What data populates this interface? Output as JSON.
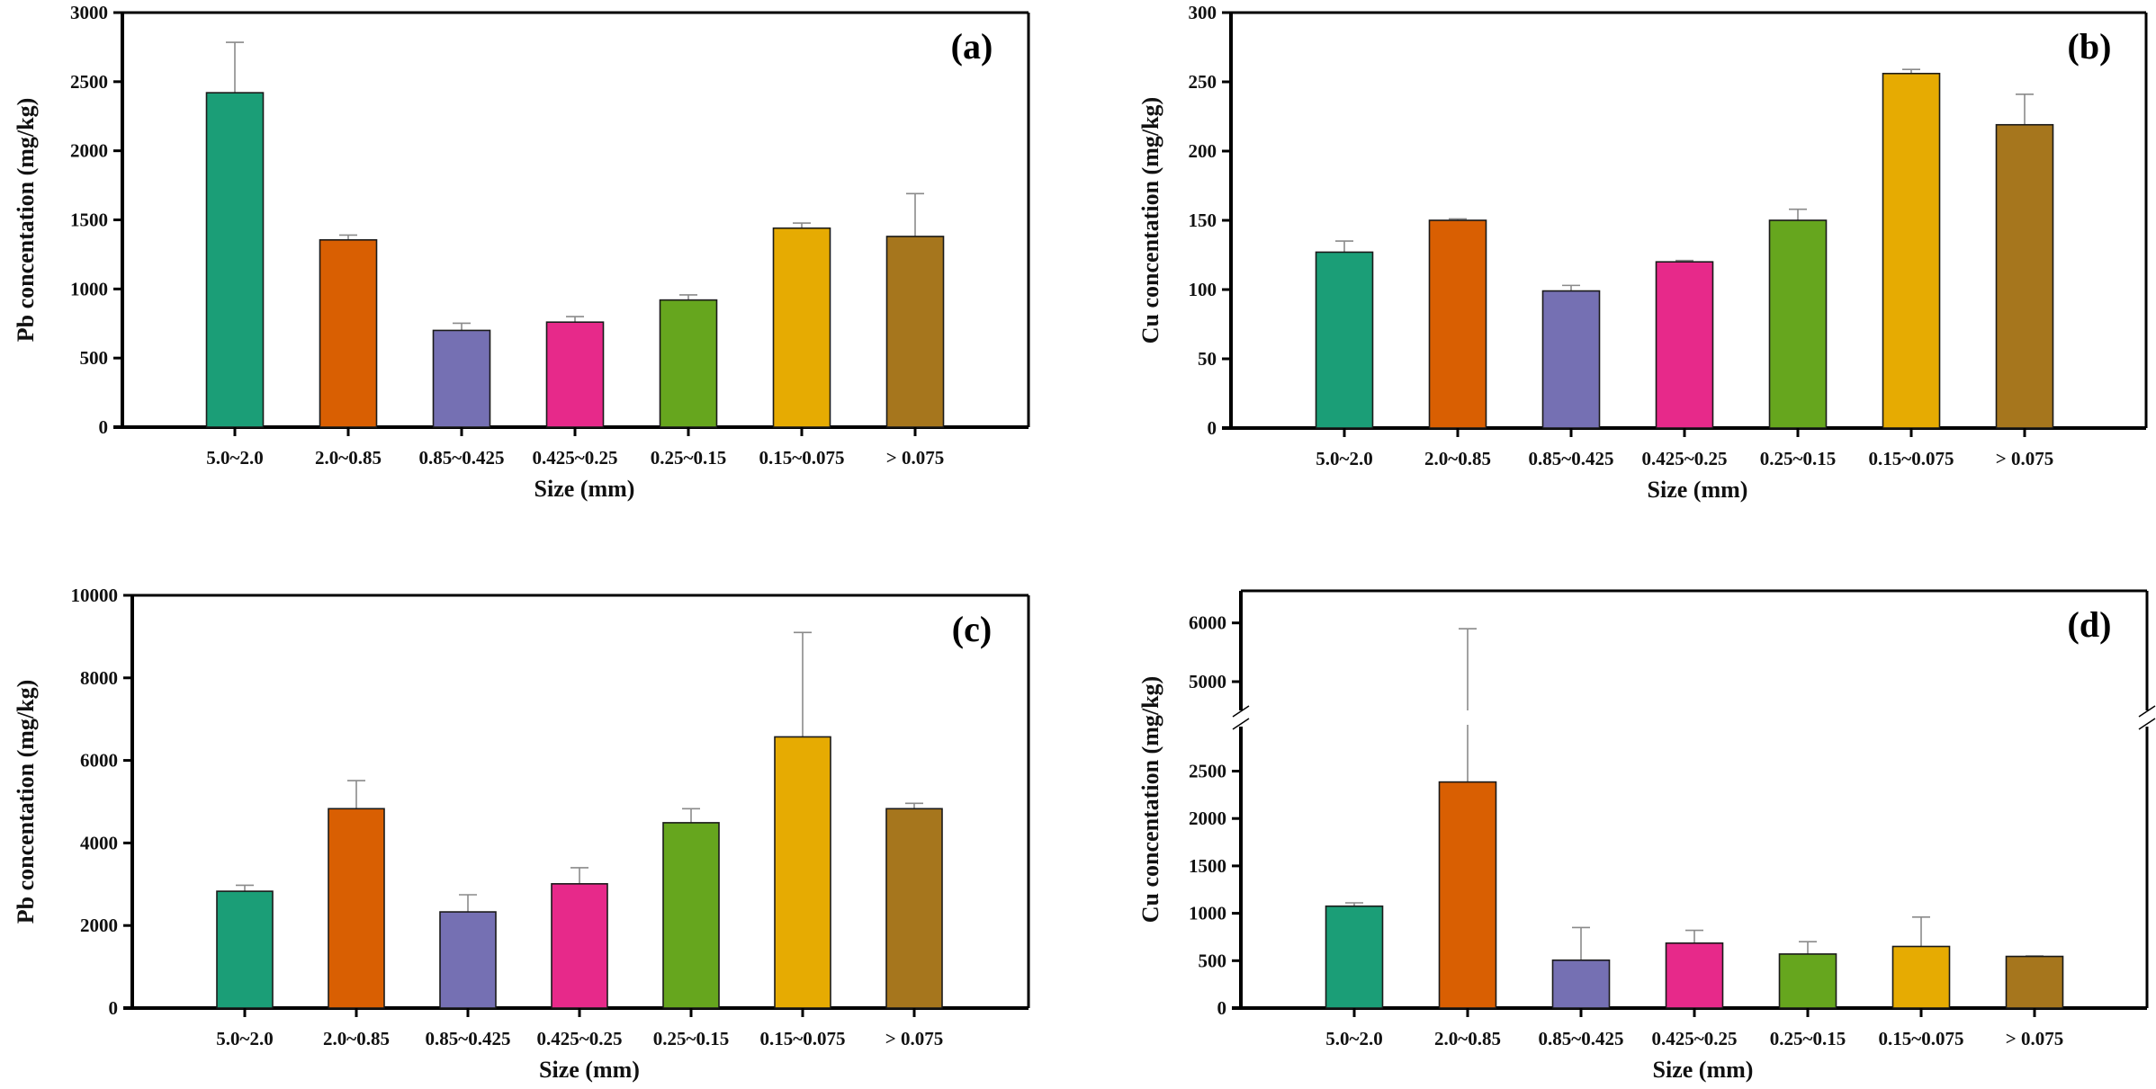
{
  "chart_data": [
    {
      "type": "bar",
      "panel": "(a)",
      "title": "",
      "xlabel": "Size (mm)",
      "ylabel": "Pb concentation (mg/kg)",
      "ylim": [
        0,
        3000
      ],
      "yticks": [
        0,
        500,
        1000,
        1500,
        2000,
        2500,
        3000
      ],
      "grid": false,
      "categories": [
        "5.0~2.0",
        "2.0~0.85",
        "0.85~0.425",
        "0.425~0.25",
        "0.25~0.15",
        "0.15~0.075",
        "> 0.075"
      ],
      "values": [
        2420,
        1355,
        700,
        760,
        920,
        1440,
        1380
      ],
      "error_upper": [
        2785,
        1390,
        752,
        800,
        957,
        1477,
        1690
      ],
      "colors": [
        "#1b9e77",
        "#d95f02",
        "#7570b3",
        "#e7298a",
        "#66a61e",
        "#e6ab02",
        "#a6761d"
      ]
    },
    {
      "type": "bar",
      "panel": "(b)",
      "title": "",
      "xlabel": "Size (mm)",
      "ylabel": "Cu concentation (mg/kg)",
      "ylim": [
        0,
        300
      ],
      "yticks": [
        0,
        50,
        100,
        150,
        200,
        250,
        300
      ],
      "grid": false,
      "categories": [
        "5.0~2.0",
        "2.0~0.85",
        "0.85~0.425",
        "0.425~0.25",
        "0.25~0.15",
        "0.15~0.075",
        "> 0.075"
      ],
      "values": [
        127,
        150,
        99,
        120,
        150,
        256,
        219
      ],
      "error_upper": [
        135,
        151,
        103,
        121,
        158,
        259,
        241
      ],
      "colors": [
        "#1b9e77",
        "#d95f02",
        "#7570b3",
        "#e7298a",
        "#66a61e",
        "#e6ab02",
        "#a6761d"
      ]
    },
    {
      "type": "bar",
      "panel": "(c)",
      "title": "",
      "xlabel": "Size (mm)",
      "ylabel": "Pb concentation (mg/kg)",
      "ylim": [
        0,
        10000
      ],
      "yticks": [
        0,
        2000,
        4000,
        6000,
        8000,
        10000
      ],
      "grid": false,
      "categories": [
        "5.0~2.0",
        "2.0~0.85",
        "0.85~0.425",
        "0.425~0.25",
        "0.25~0.15",
        "0.15~0.075",
        "> 0.075"
      ],
      "values": [
        2830,
        4830,
        2330,
        3010,
        4490,
        6570,
        4830
      ],
      "error_upper": [
        2975,
        5510,
        2745,
        3400,
        4830,
        9100,
        4960
      ],
      "colors": [
        "#1b9e77",
        "#d95f02",
        "#7570b3",
        "#e7298a",
        "#66a61e",
        "#e6ab02",
        "#a6761d"
      ]
    },
    {
      "type": "bar",
      "panel": "(d)",
      "title": "",
      "xlabel": "Size (mm)",
      "ylabel": "Cu concentation (mg/kg)",
      "ylim": [
        0,
        6550
      ],
      "axis_break": {
        "lower_range": [
          0,
          3000
        ],
        "upper_range": [
          4450,
          6550
        ]
      },
      "yticks": [
        0,
        500,
        1000,
        1500,
        2000,
        2500,
        5000,
        6000
      ],
      "grid": false,
      "categories": [
        "5.0~2.0",
        "2.0~0.85",
        "0.85~0.425",
        "0.425~0.25",
        "0.25~0.15",
        "0.15~0.075",
        "> 0.075"
      ],
      "values": [
        1075,
        2385,
        505,
        685,
        570,
        650,
        545
      ],
      "error_upper": [
        1110,
        5900,
        850,
        820,
        700,
        960,
        550
      ],
      "colors": [
        "#1b9e77",
        "#d95f02",
        "#7570b3",
        "#e7298a",
        "#66a61e",
        "#e6ab02",
        "#a6761d"
      ]
    }
  ]
}
